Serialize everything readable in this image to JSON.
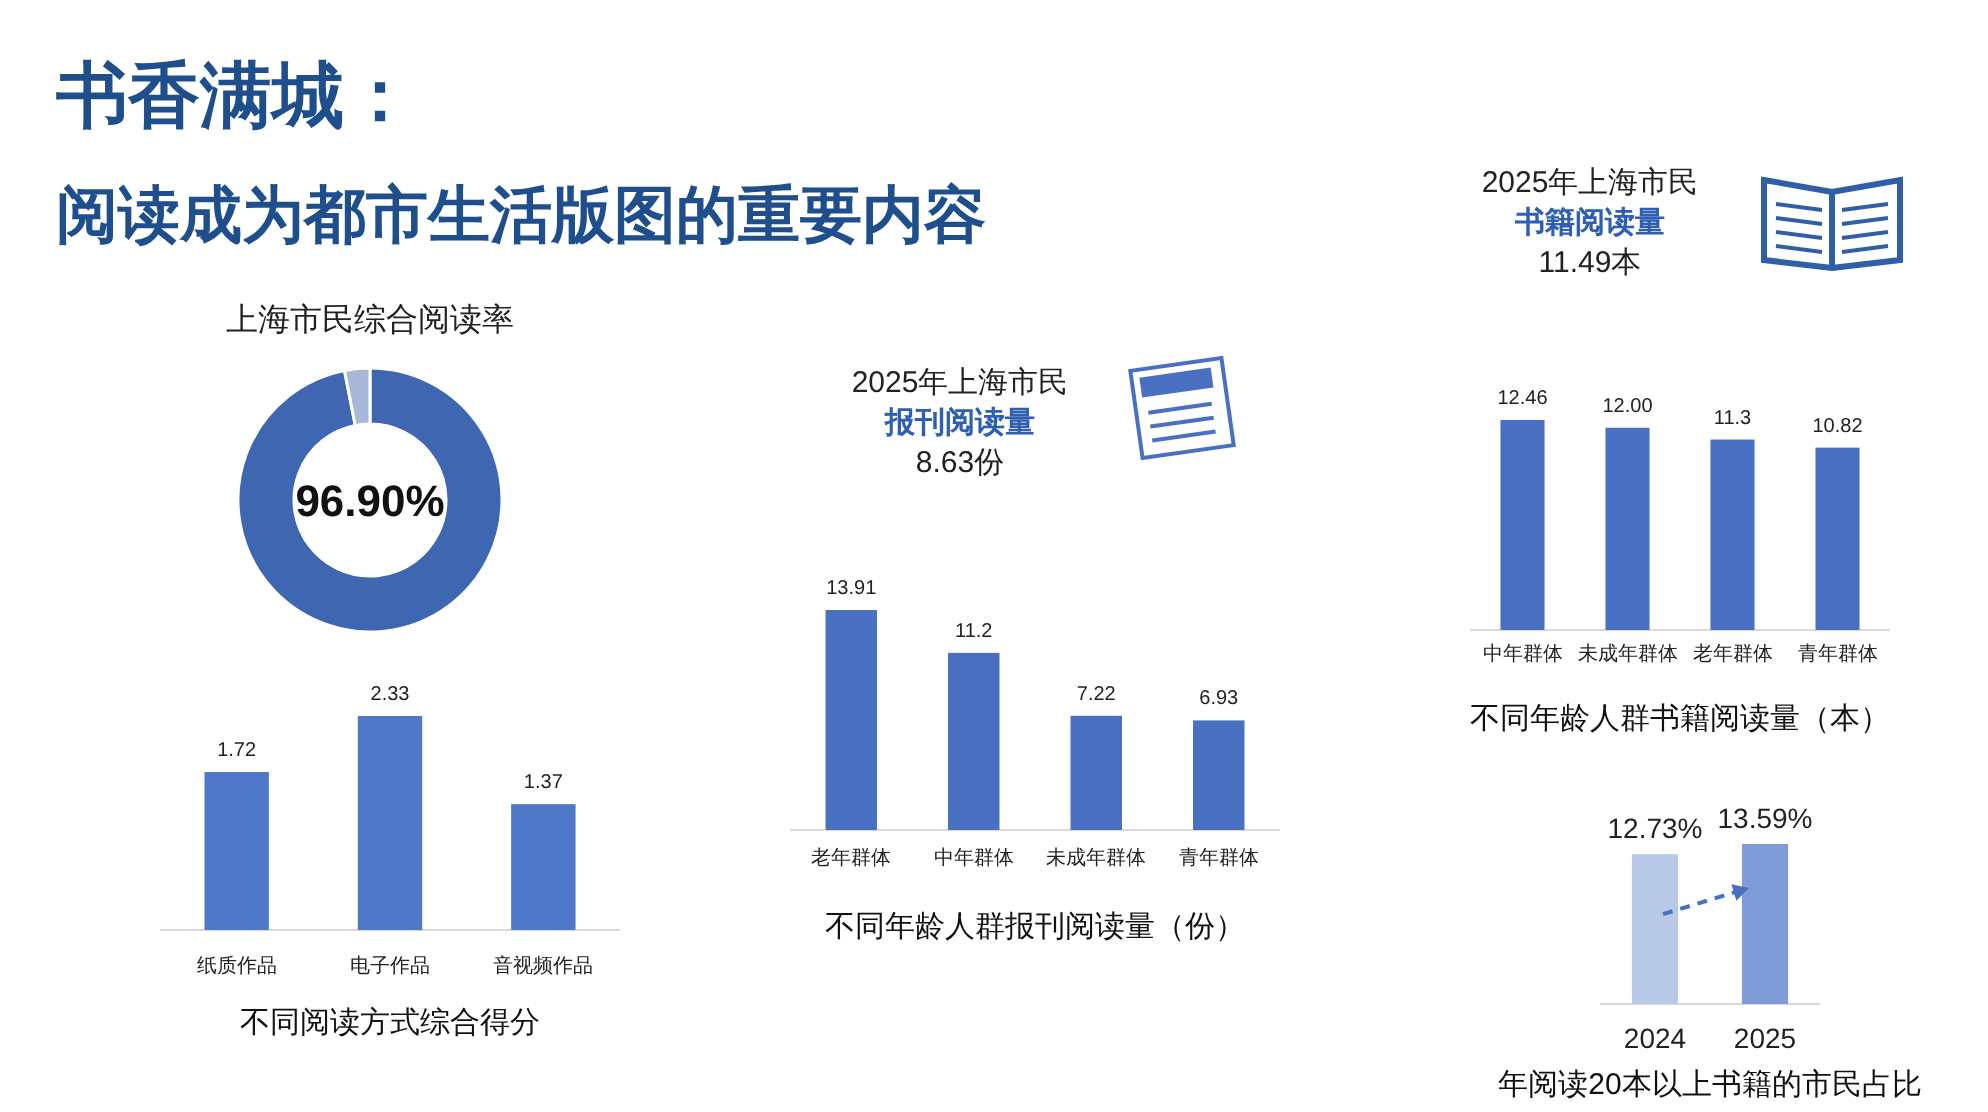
{
  "chart_data": [
    {
      "type": "other",
      "title": "书香满城：",
      "subtitle": "阅读成为都市生活版图的重要内容"
    },
    {
      "type": "donut",
      "title": "上海市民综合阅读率",
      "categories": [
        null,
        null
      ],
      "values": [
        96.9,
        3.1
      ],
      "colors": [
        "#3f67b1",
        "#a9b8d8"
      ],
      "value_labels": [
        "96.90%",
        null
      ]
    },
    {
      "type": "bar",
      "xlabel": "不同阅读方式综合得分",
      "categories": [
        "纸质作品",
        "电子作品",
        "音视频作品"
      ],
      "values": [
        1.72,
        2.33,
        1.37
      ],
      "color": "#4f78c8",
      "data_labels": true,
      "tick_labels": "x"
    },
    {
      "type": "bar",
      "title": "2025年上海市民",
      "subtitle": "报刊阅读量",
      "annotations": [
        "8.63份"
      ],
      "xlabel": "不同年龄人群报刊阅读量（份）",
      "categories": [
        "老年群体",
        "中年群体",
        "未成年群体",
        "青年群体"
      ],
      "values": [
        13.91,
        11.2,
        7.22,
        6.93
      ],
      "color": "#4a70c2",
      "data_labels": true,
      "tick_labels": "x"
    },
    {
      "type": "bar",
      "title": "2025年上海市民",
      "subtitle": "书籍阅读量",
      "annotations": [
        "11.49本"
      ],
      "xlabel": "不同年龄人群书籍阅读量（本）",
      "categories": [
        "中年群体",
        "未成年群体",
        "老年群体",
        "青年群体"
      ],
      "values": [
        12.46,
        12.0,
        11.3,
        10.82
      ],
      "value_labels": [
        "12.46",
        "12.00",
        "11.3",
        "10.82"
      ],
      "color": "#4a70c2",
      "tick_labels": "x"
    },
    {
      "type": "bar",
      "xlabel": "年阅读20本以上书籍的市民占比",
      "categories": [
        "2024",
        "2025"
      ],
      "values": [
        12.73,
        13.59
      ],
      "value_labels": [
        "12.73%",
        "13.59%"
      ],
      "colors": [
        "#b9cae9",
        "#7f9cd8"
      ],
      "tick_labels": "x"
    }
  ]
}
